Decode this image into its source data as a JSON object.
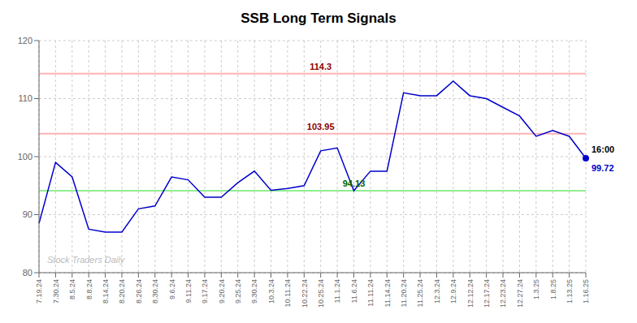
{
  "chart_data": {
    "type": "line",
    "title": "SSB Long Term Signals",
    "categories": [
      "7.19.24",
      "7.30.24",
      "8.5.24",
      "8.8.24",
      "8.14.24",
      "8.20.24",
      "8.26.24",
      "8.30.24",
      "9.6.24",
      "9.11.24",
      "9.17.24",
      "9.20.24",
      "9.25.24",
      "9.30.24",
      "10.3.24",
      "10.11.24",
      "10.22.24",
      "10.25.24",
      "11.1.24",
      "11.6.24",
      "11.11.24",
      "11.14.24",
      "11.20.24",
      "11.25.24",
      "12.3.24",
      "12.9.24",
      "12.12.24",
      "12.17.24",
      "12.23.24",
      "12.27.24",
      "1.3.25",
      "1.8.25",
      "1.13.25",
      "1.16.25"
    ],
    "values": [
      88.5,
      99.0,
      96.5,
      87.5,
      87.0,
      87.0,
      91.0,
      91.5,
      96.5,
      96.0,
      93.0,
      93.0,
      95.5,
      97.5,
      94.2,
      94.5,
      95.0,
      101.0,
      101.5,
      94.13,
      97.5,
      97.5,
      111.0,
      110.5,
      110.5,
      113.0,
      110.5,
      110.0,
      108.5,
      107.0,
      103.5,
      104.5,
      103.5,
      99.72
    ],
    "color": "#0000cc",
    "ylim": [
      80,
      120
    ],
    "yticks": [
      80,
      90,
      100,
      110,
      120
    ],
    "grid": true,
    "reference_lines": [
      {
        "value": 114.3,
        "label": "114.3",
        "color": "#ffb3b3",
        "label_color": "#8b0000",
        "at": "10.25.24"
      },
      {
        "value": 103.95,
        "label": "103.95",
        "color": "#ffb3b3",
        "label_color": "#8b0000",
        "at": "10.25.24"
      },
      {
        "value": 94.13,
        "label": "94.13",
        "color": "#90ee90",
        "label_color": "#006400",
        "at": "11.6.24"
      }
    ],
    "annotations": [
      {
        "text": "Stock Traders Daily",
        "color": "#bbbbbb"
      },
      {
        "text": "16:00",
        "x": "1.16.25"
      },
      {
        "text": "99.72",
        "x": "1.16.25",
        "color": "#0000cc"
      }
    ]
  }
}
